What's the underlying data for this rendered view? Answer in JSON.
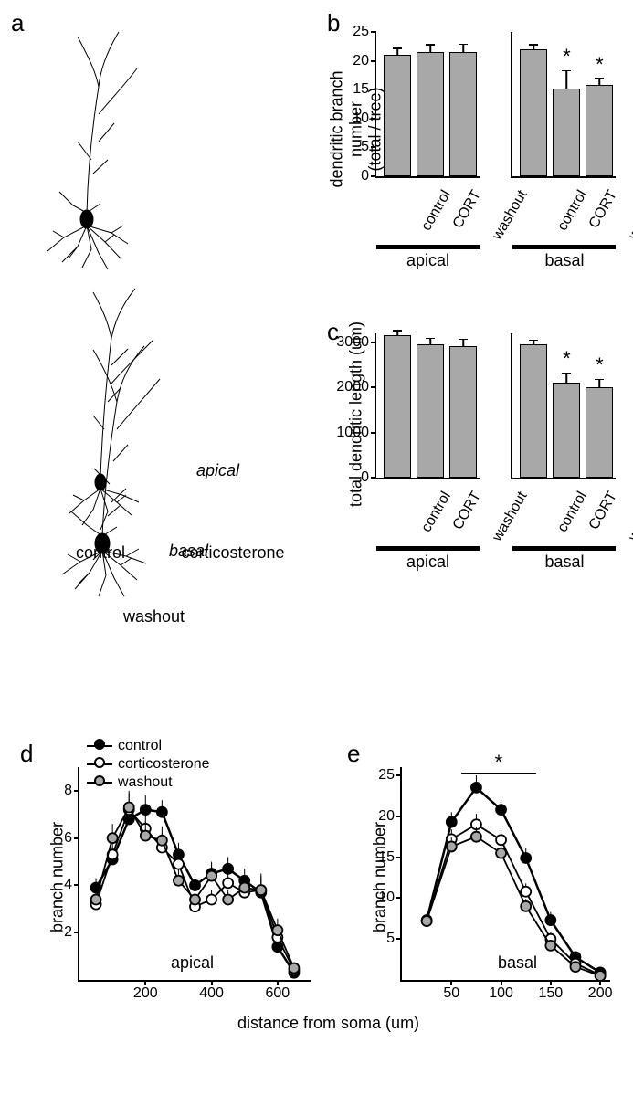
{
  "labels": {
    "a": "a",
    "b": "b",
    "c": "c",
    "d": "d",
    "e": "e",
    "control": "control",
    "corticosterone": "corticosterone",
    "washout": "washout",
    "apical": "apical",
    "basal": "basal",
    "CORT": "CORT",
    "star": "*"
  },
  "panel_b": {
    "ylabel": "dendritic branch number\n(total / tree)",
    "ylim": [
      0,
      25
    ],
    "ytick_step": 5,
    "apical": {
      "categories": [
        "control",
        "CORT",
        "washout"
      ],
      "values": [
        21,
        21.5,
        21.5
      ],
      "errors": [
        1.2,
        1.3,
        1.4
      ],
      "sig": [
        false,
        false,
        false
      ]
    },
    "basal": {
      "categories": [
        "control",
        "CORT",
        "washout"
      ],
      "values": [
        22,
        15.2,
        15.8
      ],
      "errors": [
        0.8,
        3.1,
        1.2
      ],
      "sig": [
        false,
        true,
        true
      ]
    },
    "bar_color": "#a8a8a8"
  },
  "panel_c": {
    "ylabel": "total dendritic length (um)",
    "ylim": [
      0,
      3200
    ],
    "yticks": [
      0,
      1000,
      2000,
      3000
    ],
    "apical": {
      "categories": [
        "control",
        "CORT",
        "washout"
      ],
      "values": [
        3150,
        2950,
        2920
      ],
      "errors": [
        120,
        140,
        150
      ],
      "sig": [
        false,
        false,
        false
      ]
    },
    "basal": {
      "categories": [
        "control",
        "CORT",
        "washout"
      ],
      "values": [
        2950,
        2100,
        2000
      ],
      "errors": [
        100,
        220,
        180
      ],
      "sig": [
        false,
        true,
        true
      ]
    },
    "bar_color": "#a8a8a8"
  },
  "panel_d": {
    "ylabel": "branch number",
    "xlabel_shared": "distance from soma (um)",
    "xlim": [
      0,
      700
    ],
    "xticks": [
      200,
      400,
      600
    ],
    "ylim": [
      0,
      9
    ],
    "yticks": [
      2,
      4,
      6,
      8
    ],
    "in_label": "apical",
    "series": [
      {
        "name": "control",
        "fill": "#000000",
        "x": [
          50,
          100,
          150,
          200,
          250,
          300,
          350,
          400,
          450,
          500,
          550,
          600,
          650
        ],
        "y": [
          3.9,
          5.1,
          6.8,
          7.2,
          7.1,
          5.3,
          4.0,
          4.5,
          4.7,
          4.2,
          3.7,
          1.4,
          0.3
        ],
        "err": [
          0.4,
          0.5,
          0.6,
          0.6,
          0.5,
          0.5,
          0.4,
          0.5,
          0.5,
          0.5,
          0.6,
          0.4,
          0.2
        ]
      },
      {
        "name": "corticosterone",
        "fill": "#ffffff",
        "x": [
          50,
          100,
          150,
          200,
          250,
          300,
          350,
          400,
          450,
          500,
          550,
          600,
          650
        ],
        "y": [
          3.2,
          5.3,
          7.2,
          6.4,
          5.6,
          4.9,
          3.1,
          3.4,
          4.1,
          3.7,
          3.8,
          1.8,
          0.4
        ],
        "err": [
          0.4,
          0.5,
          0.7,
          0.6,
          0.6,
          0.5,
          0.4,
          0.4,
          0.5,
          0.5,
          0.6,
          0.5,
          0.2
        ]
      },
      {
        "name": "washout",
        "fill": "#a8a8a8",
        "x": [
          50,
          100,
          150,
          200,
          250,
          300,
          350,
          400,
          450,
          500,
          550,
          600,
          650
        ],
        "y": [
          3.4,
          6.0,
          7.3,
          6.1,
          5.9,
          4.2,
          3.4,
          4.4,
          3.4,
          3.9,
          3.8,
          2.1,
          0.5
        ],
        "err": [
          0.4,
          0.6,
          0.7,
          0.6,
          0.6,
          0.5,
          0.4,
          0.5,
          0.4,
          0.5,
          0.7,
          0.5,
          0.2
        ]
      }
    ]
  },
  "panel_e": {
    "ylabel": "branch number",
    "xlim": [
      0,
      210
    ],
    "xticks": [
      50,
      100,
      150,
      200
    ],
    "ylim": [
      0,
      26
    ],
    "yticks": [
      5,
      10,
      15,
      20,
      25
    ],
    "in_label": "basal",
    "sig_range": [
      60,
      135
    ],
    "series": [
      {
        "name": "control",
        "fill": "#000000",
        "x": [
          25,
          50,
          75,
          100,
          125,
          150,
          175,
          200
        ],
        "y": [
          7.3,
          19.3,
          23.5,
          20.8,
          14.9,
          7.3,
          2.8,
          0.9
        ],
        "err": [
          0.8,
          1.2,
          1.5,
          1.3,
          1.2,
          1.0,
          0.6,
          0.3
        ]
      },
      {
        "name": "corticosterone",
        "fill": "#ffffff",
        "x": [
          25,
          50,
          75,
          100,
          125,
          150,
          175,
          200
        ],
        "y": [
          7.2,
          17.2,
          19.0,
          17.1,
          10.8,
          5.0,
          2.0,
          0.6
        ],
        "err": [
          0.8,
          1.2,
          1.3,
          1.2,
          1.0,
          0.8,
          0.5,
          0.2
        ]
      },
      {
        "name": "washout",
        "fill": "#a8a8a8",
        "x": [
          25,
          50,
          75,
          100,
          125,
          150,
          175,
          200
        ],
        "y": [
          7.2,
          16.3,
          17.5,
          15.5,
          9.0,
          4.2,
          1.6,
          0.5
        ],
        "err": [
          0.8,
          1.1,
          1.2,
          1.1,
          0.9,
          0.7,
          0.4,
          0.2
        ]
      }
    ]
  },
  "colors": {
    "control_marker": "#000000",
    "cort_marker": "#ffffff",
    "washout_marker": "#a8a8a8",
    "line": "#000000"
  }
}
